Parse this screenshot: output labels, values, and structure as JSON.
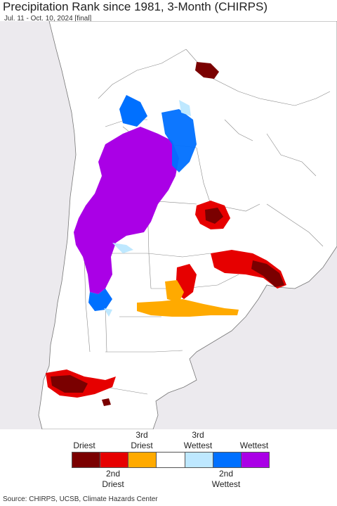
{
  "header": {
    "title": "Precipitation Rank since 1981, 3-Month (CHIRPS)",
    "subtitle": "Jul. 11 - Oct. 10, 2024 [final]"
  },
  "colors": {
    "ocean": "#eceaee",
    "land": "#ffffff",
    "border": "#6a6a6a"
  },
  "legend": {
    "top_labels": [
      {
        "line1": "",
        "line2": "Driest"
      },
      {
        "line1": "3rd",
        "line2": "Driest"
      },
      {
        "line1": "3rd",
        "line2": "Wettest"
      },
      {
        "line1": "",
        "line2": "Wettest"
      }
    ],
    "bottom_labels": [
      {
        "line1": "2nd",
        "line2": "Driest"
      },
      {
        "line1": "2nd",
        "line2": "Wettest"
      }
    ],
    "swatches": [
      "#7a0000",
      "#e60000",
      "#ffaa00",
      "#ffffff",
      "#bee8ff",
      "#0070ff",
      "#aa00e6"
    ]
  },
  "footer": {
    "source": "Source: CHIRPS, UCSB, Climate Hazards Center"
  }
}
